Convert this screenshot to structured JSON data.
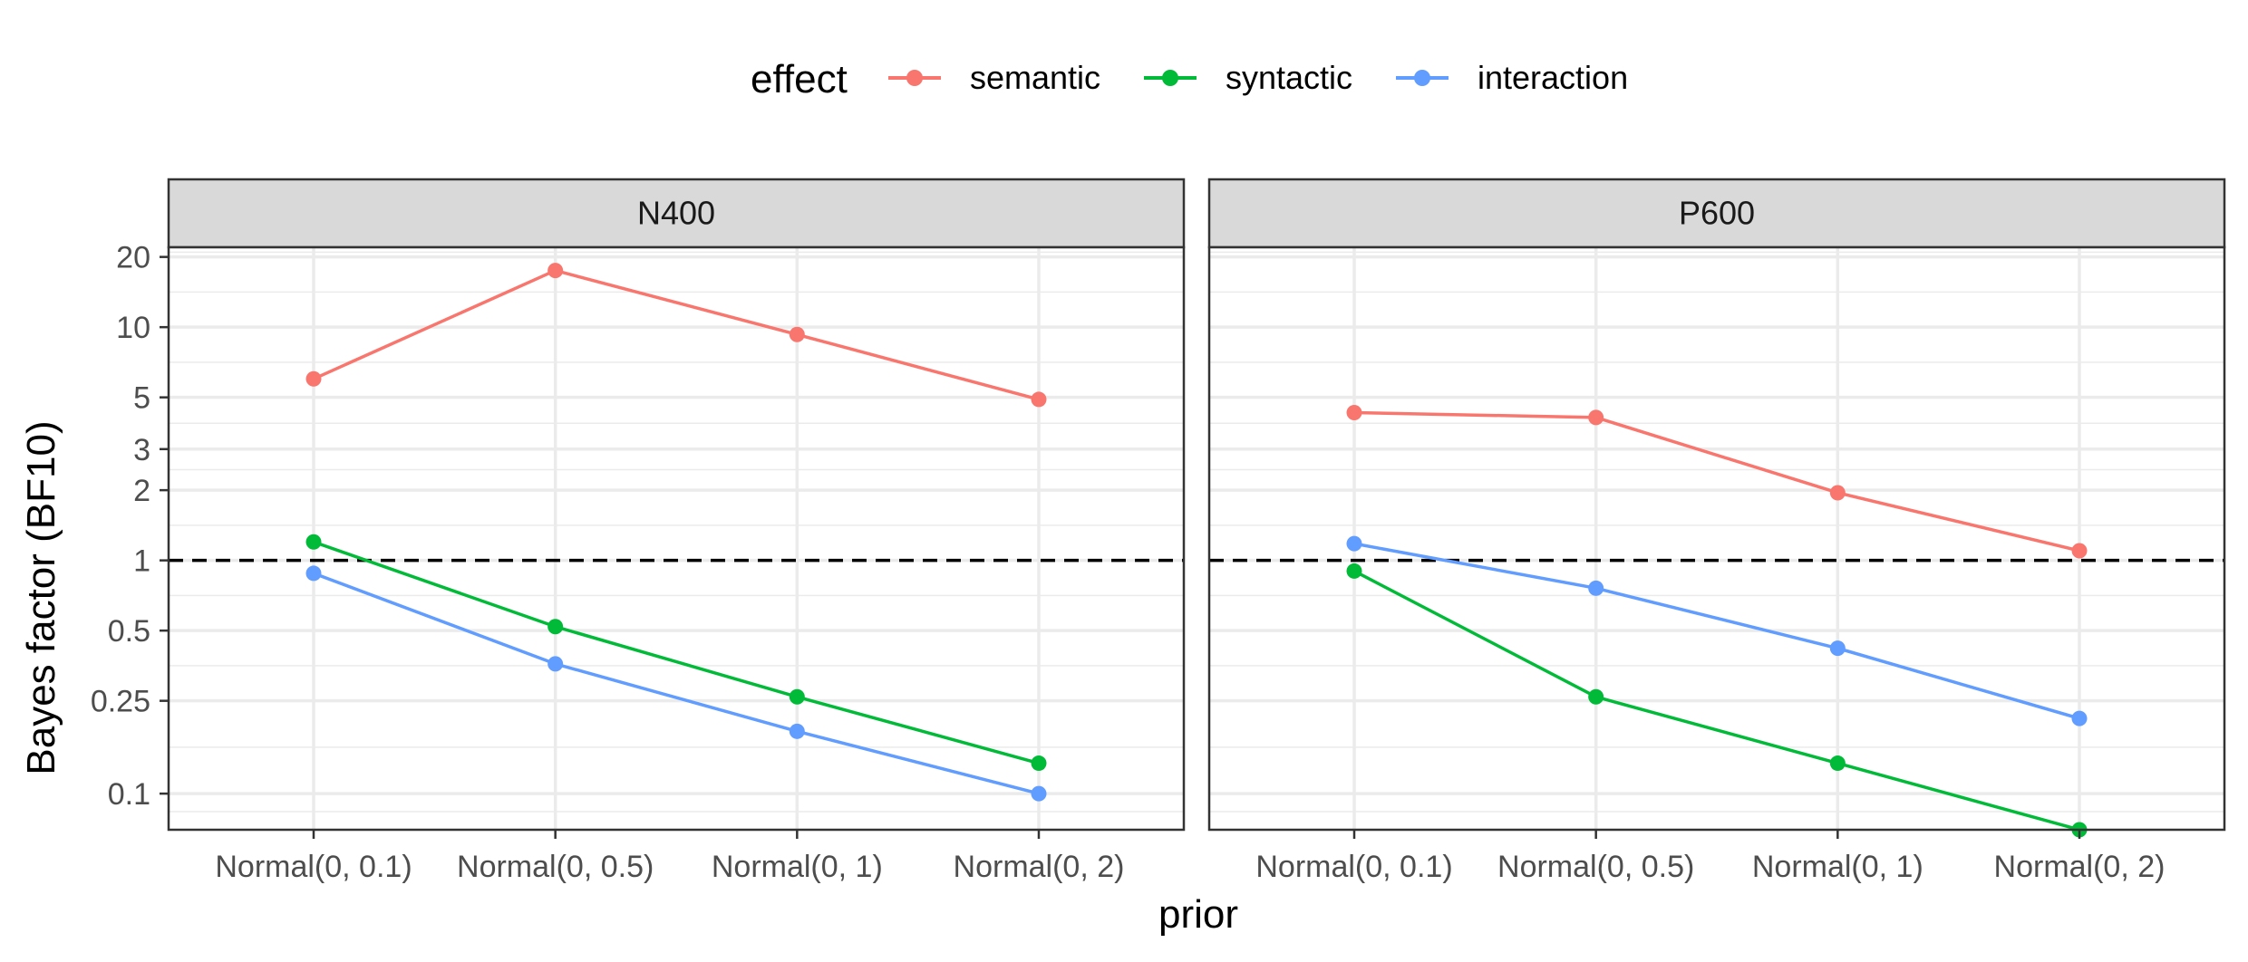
{
  "chart_data": {
    "type": "line",
    "legend": {
      "title": "effect",
      "placement": "top",
      "entries": [
        {
          "name": "semantic",
          "color": "#F8766D"
        },
        {
          "name": "syntactic",
          "color": "#00BA38"
        },
        {
          "name": "interaction",
          "color": "#619CFF"
        }
      ]
    },
    "xlabel": "prior",
    "ylabel": "Bayes factor (BF10)",
    "categories": [
      "Normal(0, 0.1)",
      "Normal(0, 0.5)",
      "Normal(0, 1)",
      "Normal(0, 2)"
    ],
    "yscale": "log10",
    "ylim": [
      0.07,
      22
    ],
    "yticks": [
      {
        "value": 0.1,
        "label": "0.1"
      },
      {
        "value": 0.25,
        "label": "0.25"
      },
      {
        "value": 0.5,
        "label": "0.5"
      },
      {
        "value": 1,
        "label": "1"
      },
      {
        "value": 2,
        "label": "2"
      },
      {
        "value": 3,
        "label": "3"
      },
      {
        "value": 5,
        "label": "5"
      },
      {
        "value": 10,
        "label": "10"
      },
      {
        "value": 20,
        "label": "20"
      }
    ],
    "reference_line": {
      "value": 1,
      "style": "dashed"
    },
    "grid": true,
    "panels": [
      {
        "title": "N400",
        "series": [
          {
            "name": "semantic",
            "values": [
              6.0,
              17.5,
              9.3,
              4.9
            ]
          },
          {
            "name": "syntactic",
            "values": [
              1.2,
              0.52,
              0.26,
              0.135
            ]
          },
          {
            "name": "interaction",
            "values": [
              0.88,
              0.36,
              0.185,
              0.1
            ]
          }
        ]
      },
      {
        "title": "P600",
        "series": [
          {
            "name": "semantic",
            "values": [
              4.3,
              4.1,
              1.95,
              1.1
            ]
          },
          {
            "name": "syntactic",
            "values": [
              0.9,
              0.26,
              0.135,
              0.07
            ]
          },
          {
            "name": "interaction",
            "values": [
              1.18,
              0.76,
              0.42,
              0.21
            ]
          }
        ]
      }
    ]
  }
}
